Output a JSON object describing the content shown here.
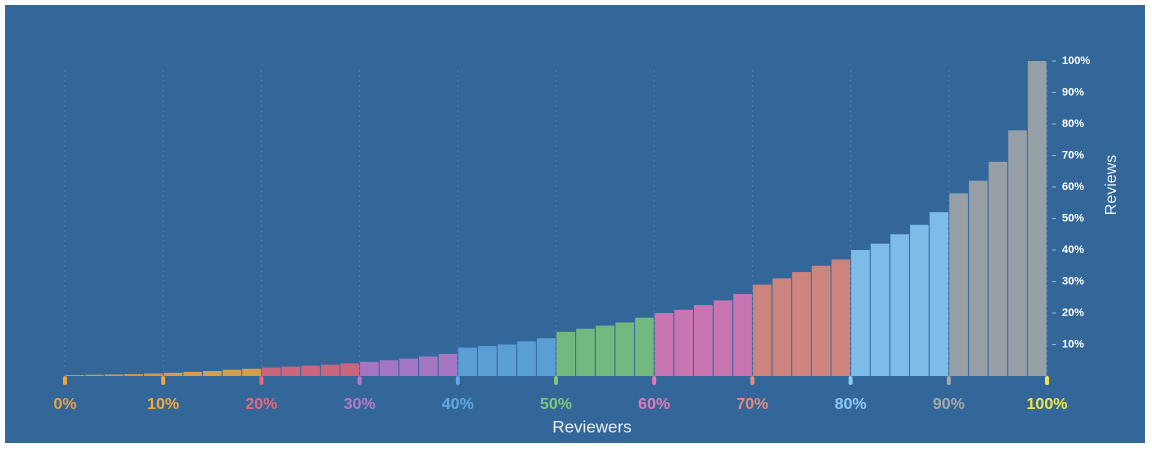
{
  "chart_data": {
    "type": "bar",
    "x_label": "Reviewers",
    "y_label": "Reviews",
    "x": [
      1,
      3,
      5,
      7,
      9,
      11,
      13,
      15,
      17,
      19,
      21,
      23,
      25,
      27,
      29,
      31,
      33,
      35,
      37,
      39,
      41,
      43,
      45,
      47,
      49,
      51,
      53,
      55,
      57,
      59,
      61,
      63,
      65,
      67,
      69,
      71,
      73,
      75,
      77,
      79,
      81,
      83,
      85,
      87,
      89,
      91,
      93,
      95,
      97,
      99
    ],
    "values": [
      0.3,
      0.4,
      0.5,
      0.6,
      0.8,
      1,
      1.3,
      1.6,
      2,
      2.3,
      2.7,
      3,
      3.3,
      3.6,
      4,
      4.5,
      5,
      5.5,
      6.2,
      7,
      9,
      9.5,
      10,
      11,
      12,
      14,
      15,
      16,
      17,
      18.5,
      20,
      21,
      22.5,
      24,
      26,
      29,
      31,
      33,
      35,
      37,
      40,
      42,
      45,
      48,
      52,
      58,
      62,
      68,
      78,
      100
    ],
    "xlim": [
      0,
      100
    ],
    "ylim": [
      0,
      100
    ],
    "xticks": [
      {
        "value": 0,
        "label": "0%"
      },
      {
        "value": 10,
        "label": "10%"
      },
      {
        "value": 20,
        "label": "20%"
      },
      {
        "value": 30,
        "label": "30%"
      },
      {
        "value": 40,
        "label": "40%"
      },
      {
        "value": 50,
        "label": "50%"
      },
      {
        "value": 60,
        "label": "60%"
      },
      {
        "value": 70,
        "label": "70%"
      },
      {
        "value": 80,
        "label": "80%"
      },
      {
        "value": 90,
        "label": "90%"
      },
      {
        "value": 100,
        "label": "100%"
      }
    ],
    "tick_colors": [
      "#f0a23a",
      "#f2a83c",
      "#e8667a",
      "#b878c8",
      "#62a8e0",
      "#7cc87a",
      "#e478b6",
      "#e88a78",
      "#8ccaf4",
      "#a8a8a8",
      "#f2e44a"
    ],
    "yticks": [
      {
        "value": 10,
        "label": "10%"
      },
      {
        "value": 20,
        "label": "20%"
      },
      {
        "value": 30,
        "label": "30%"
      },
      {
        "value": 40,
        "label": "40%"
      },
      {
        "value": 50,
        "label": "50%"
      },
      {
        "value": 60,
        "label": "60%"
      },
      {
        "value": 70,
        "label": "70%"
      },
      {
        "value": 80,
        "label": "80%"
      },
      {
        "value": 90,
        "label": "90%"
      },
      {
        "value": 100,
        "label": "100%"
      }
    ],
    "grid": true
  }
}
